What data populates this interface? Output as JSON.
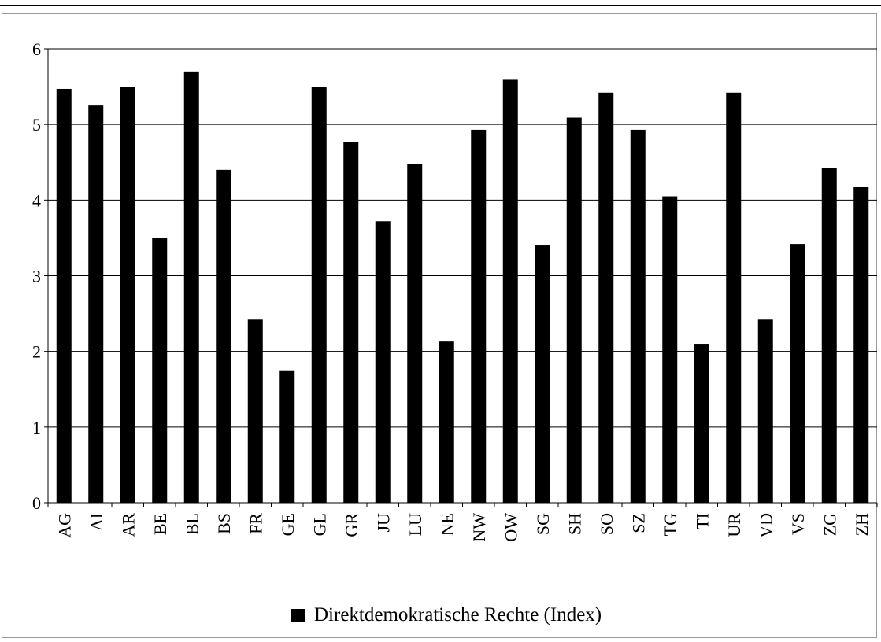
{
  "chart_data": {
    "type": "bar",
    "categories": [
      "AG",
      "AI",
      "AR",
      "BE",
      "BL",
      "BS",
      "FR",
      "GE",
      "GL",
      "GR",
      "JU",
      "LU",
      "NE",
      "NW",
      "OW",
      "SG",
      "SH",
      "SO",
      "SZ",
      "TG",
      "TI",
      "UR",
      "VD",
      "VS",
      "ZG",
      "ZH"
    ],
    "series": [
      {
        "name": "Direktdemokratische Rechte (Index)",
        "values": [
          5.47,
          5.25,
          5.5,
          3.5,
          5.7,
          4.4,
          2.42,
          1.75,
          5.5,
          4.77,
          3.72,
          4.48,
          2.13,
          4.93,
          5.59,
          3.4,
          5.09,
          5.42,
          4.93,
          4.05,
          2.1,
          5.42,
          2.42,
          3.42,
          4.42,
          4.17
        ]
      }
    ],
    "yticks": [
      "0",
      "1",
      "2",
      "3",
      "4",
      "5",
      "6"
    ],
    "ylim": [
      0,
      6
    ],
    "grid": true,
    "legend_position": "bottom-center",
    "colors": {
      "bar": "#000000",
      "grid": "#000000",
      "axis": "#000000"
    }
  }
}
